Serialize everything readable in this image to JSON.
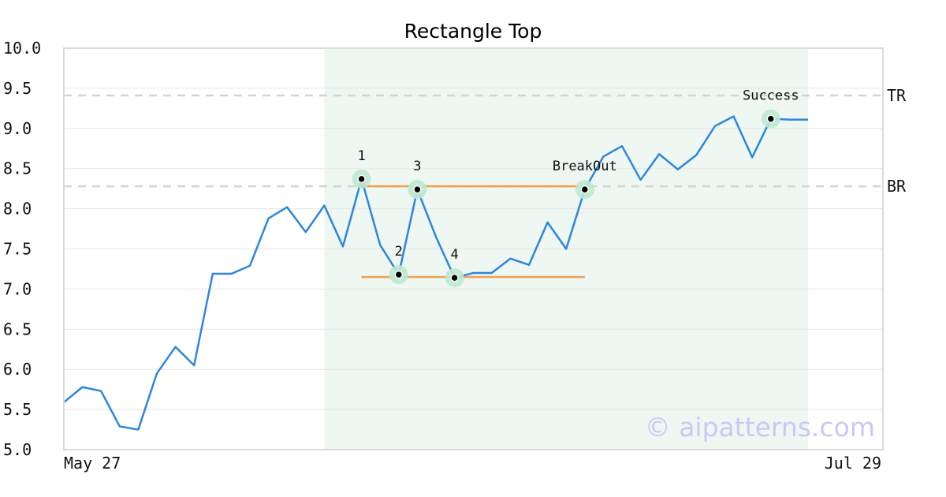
{
  "chart_data": {
    "type": "line",
    "title": "Rectangle Top",
    "xlabel": "",
    "ylabel": "",
    "ylim": [
      5.0,
      10.0
    ],
    "yticks": [
      "10.0",
      "9.5",
      "9.0",
      "8.5",
      "8.0",
      "7.5",
      "7.0",
      "6.5",
      "6.0",
      "5.5",
      "5.0"
    ],
    "xticks": [
      "May 27",
      "Jul 29"
    ],
    "grid": true,
    "series": [
      {
        "color": "#2e86de",
        "values": [
          5.59,
          5.78,
          5.73,
          5.29,
          5.25,
          5.95,
          6.28,
          6.05,
          7.19,
          7.19,
          7.29,
          7.88,
          8.02,
          7.71,
          8.04,
          7.53,
          8.37,
          7.55,
          7.18,
          8.24,
          7.65,
          7.14,
          7.2,
          7.2,
          7.38,
          7.3,
          7.83,
          7.5,
          8.24,
          8.65,
          8.78,
          8.36,
          8.68,
          8.49,
          8.67,
          9.03,
          9.15,
          8.64,
          9.12,
          9.11,
          9.11
        ]
      }
    ],
    "highlight_range": {
      "start_index": 14,
      "end_index": 40,
      "color": "#eef7f2"
    },
    "levels": [
      {
        "label": "TR",
        "value": 9.41
      },
      {
        "label": "BR",
        "value": 8.28
      }
    ],
    "pattern_lines": [
      {
        "from_index": 16,
        "to_index": 28,
        "value": 8.28,
        "color": "#f0a050"
      },
      {
        "from_index": 16,
        "to_index": 28,
        "value": 7.15,
        "color": "#f0a050"
      }
    ],
    "annotations": [
      {
        "label": "1",
        "index": 16,
        "value": 8.37
      },
      {
        "label": "2",
        "index": 18,
        "value": 7.18
      },
      {
        "label": "3",
        "index": 19,
        "value": 8.24
      },
      {
        "label": "4",
        "index": 21,
        "value": 7.14
      },
      {
        "label": "BreakOut",
        "index": 28,
        "value": 8.24
      },
      {
        "label": "Success",
        "index": 38,
        "value": 9.12
      }
    ],
    "watermark": "© aipatterns.com"
  }
}
